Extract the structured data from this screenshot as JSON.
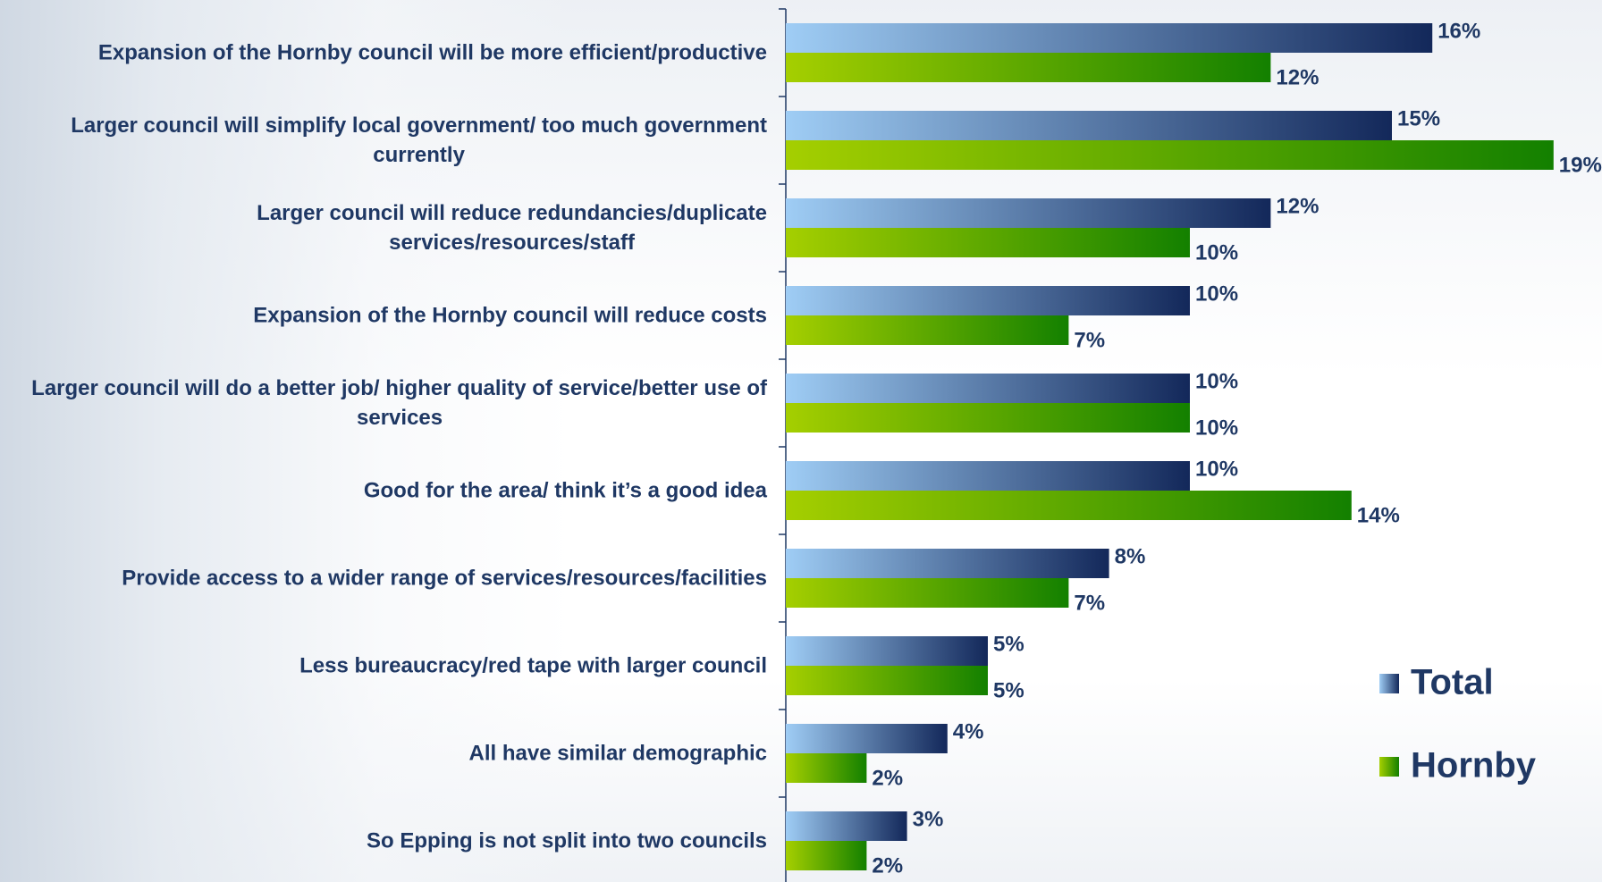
{
  "chart_data": {
    "type": "bar",
    "orientation": "horizontal",
    "categories": [
      "Expansion of the Hornby council will be more efficient/productive",
      "Larger council will simplify local government/ too much government currently",
      "Larger council will reduce redundancies/duplicate services/resources/staff",
      "Expansion of the Hornby council will reduce costs",
      "Larger council will do a better job/ higher quality of service/better use of services",
      "Good for the area/ think it’s a good idea",
      "Provide access to a wider range of services/resources/facilities",
      "Less bureaucracy/red tape with larger council",
      "All have similar demographic",
      "So Epping is not split into two councils"
    ],
    "category_lines": [
      [
        "Expansion of the Hornby council will be more efficient/productive"
      ],
      [
        "Larger council will simplify local government/ too much government",
        "currently"
      ],
      [
        "Larger council will reduce redundancies/duplicate",
        "services/resources/staff"
      ],
      [
        "Expansion of the Hornby council will reduce costs"
      ],
      [
        "Larger council will do a better job/ higher quality of service/better use of",
        "services"
      ],
      [
        "Good for the area/ think it’s a good idea"
      ],
      [
        "Provide access to a wider range of services/resources/facilities"
      ],
      [
        "Less bureaucracy/red tape with larger council"
      ],
      [
        "All have similar demographic"
      ],
      [
        "So Epping is not split into two councils"
      ]
    ],
    "series": [
      {
        "name": "Total",
        "values": [
          16,
          15,
          12,
          10,
          10,
          10,
          8,
          5,
          4,
          3
        ],
        "color_start": "#9fcdf5",
        "color_end": "#13285a"
      },
      {
        "name": "Hornby",
        "values": [
          12,
          19,
          10,
          7,
          10,
          14,
          7,
          5,
          2,
          2
        ],
        "color_start": "#a5cf00",
        "color_end": "#138000"
      }
    ],
    "value_suffix": "%",
    "xlim": [
      0,
      20
    ],
    "grid": false,
    "legend_position": "right",
    "title": "",
    "xlabel": "",
    "ylabel": ""
  }
}
